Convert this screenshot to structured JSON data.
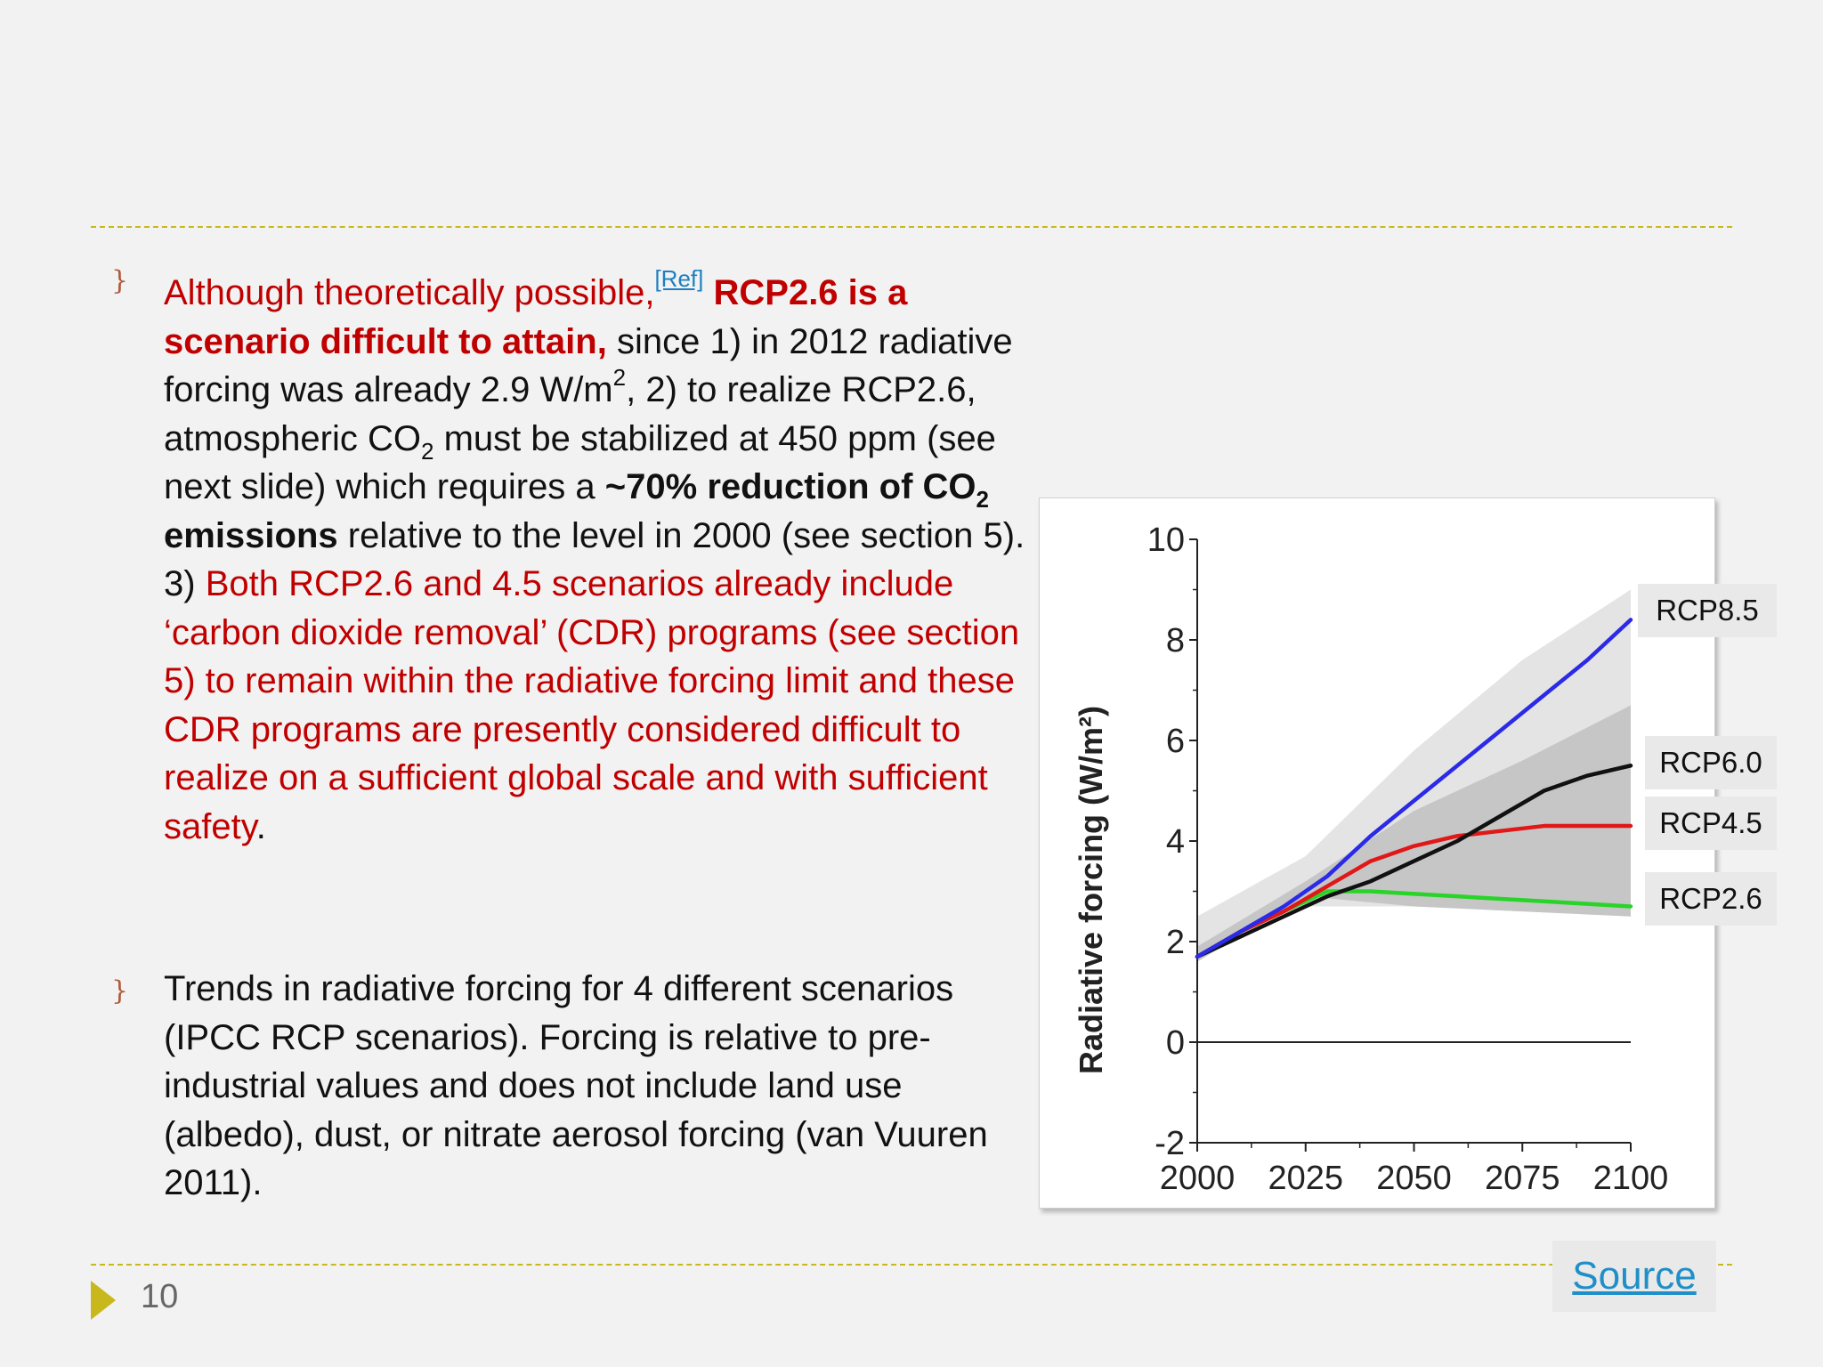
{
  "slide": {
    "page_number": "10",
    "source_link": "Source",
    "bullet_glyph": "}",
    "para1": {
      "t1": "Although theoretically possible,",
      "ref": "[Ref]",
      "t2": " RCP2.6 is a scenario difficult to attain,",
      "t3": "  since 1) in 2012 radiative forcing was already 2.9 W/m",
      "sup2": "2",
      "t4": ", 2) to realize RCP2.6, atmospheric CO",
      "sub2a": "2",
      "t5": " must be stabilized at 450 ppm (see next slide) which requires a ",
      "t6": "~70% reduction of CO",
      "sub2b": "2",
      "t7": " emissions",
      "t8": " relative to the level in 2000 (see section 5). 3) ",
      "t9": "Both RCP2.6 and 4.5 scenarios already include ‘carbon dioxide removal’ (CDR) programs (see section 5) to remain within the radiative forcing limit and these CDR programs are presently considered difficult to realize on a sufficient global scale and with sufficient safety",
      "t10": "."
    },
    "para2": "Trends in radiative forcing  for 4 different scenarios (IPCC RCP scenarios). Forcing is relative to pre-industrial values and does not include land use (albedo), dust, or nitrate aerosol forcing (van Vuuren 2011).",
    "colors": {
      "red_text": "#c00000",
      "accent": "#c9b81c",
      "link": "#1e8fc8"
    }
  },
  "chart_data": {
    "type": "line",
    "title": "",
    "xlabel": "",
    "ylabel": "Radiative forcing (W/m²)",
    "xlim": [
      2000,
      2100
    ],
    "ylim": [
      -2,
      10
    ],
    "x_ticks": [
      2000,
      2025,
      2050,
      2075,
      2100
    ],
    "y_ticks": [
      -2,
      0,
      2,
      4,
      6,
      8,
      10
    ],
    "x_tick_labels": [
      "2000",
      "2025",
      "2050",
      "2075",
      "2100"
    ],
    "y_tick_labels": [
      "-2",
      "0",
      "2",
      "4",
      "6",
      "8",
      "10"
    ],
    "zero_line": 0,
    "grid": false,
    "legend": "right labels",
    "x": [
      2000,
      2010,
      2020,
      2030,
      2040,
      2050,
      2060,
      2070,
      2080,
      2090,
      2100
    ],
    "series": [
      {
        "name": "RCP8.5",
        "color": "#2a2ae8",
        "values": [
          1.7,
          2.2,
          2.7,
          3.3,
          4.1,
          4.8,
          5.5,
          6.2,
          6.9,
          7.6,
          8.4
        ]
      },
      {
        "name": "RCP6.0",
        "color": "#111111",
        "values": [
          1.7,
          2.1,
          2.5,
          2.9,
          3.2,
          3.6,
          4.0,
          4.5,
          5.0,
          5.3,
          5.5
        ]
      },
      {
        "name": "RCP4.5",
        "color": "#e01818",
        "values": [
          1.7,
          2.2,
          2.6,
          3.1,
          3.6,
          3.9,
          4.1,
          4.2,
          4.3,
          4.3,
          4.3
        ]
      },
      {
        "name": "RCP2.6",
        "color": "#28d428",
        "values": [
          1.7,
          2.2,
          2.6,
          3.0,
          3.0,
          2.95,
          2.9,
          2.85,
          2.8,
          2.75,
          2.7
        ]
      }
    ],
    "bands": [
      {
        "color": "#e4e4e4",
        "x": [
          2000,
          2025,
          2050,
          2075,
          2100
        ],
        "upper": [
          2.5,
          3.7,
          5.8,
          7.6,
          9.0
        ],
        "lower": [
          1.7,
          2.7,
          2.7,
          2.6,
          2.5
        ]
      },
      {
        "color": "#c6c6c6",
        "x": [
          2000,
          2025,
          2050,
          2075,
          2100
        ],
        "upper": [
          1.9,
          3.2,
          4.6,
          5.6,
          6.7
        ],
        "lower": [
          1.6,
          2.9,
          2.7,
          2.6,
          2.5
        ]
      }
    ]
  }
}
